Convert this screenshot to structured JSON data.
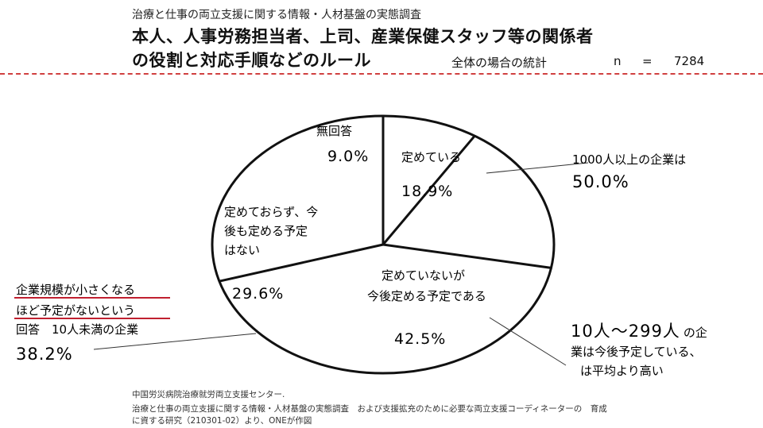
{
  "header": {
    "survey_title": "治療と仕事の両立支援に関する情報・人材基盤の実態調査",
    "headline_line1": "本人、人事労務担当者、上司、産業保健スタッフ等の関係者",
    "headline_line2": "の役割と対応手順などのルール",
    "stats_label": "全体の場合の統計",
    "stats_n_label": "n",
    "stats_eq": "=",
    "stats_n_value": "7284"
  },
  "chart_data": {
    "type": "pie",
    "slices": [
      {
        "label": "定めている",
        "value": 18.9,
        "value_text": "18.9%"
      },
      {
        "label": "定めていないが今後定める予定である",
        "value": 42.5,
        "value_text": "42.5%"
      },
      {
        "label": "定めておらず、今後も定める予定はない",
        "value": 29.6,
        "value_text": "29.6%"
      },
      {
        "label": "無回答",
        "value": 9.0,
        "value_text": "9.0%"
      }
    ],
    "slice_label_lines": {
      "defined": [
        "定めている"
      ],
      "planned": [
        "定めていないが",
        "今後定める予定である"
      ],
      "not_planned": [
        "定めておらず、今",
        "後も定める予定",
        "はない"
      ],
      "no_answer": [
        "無回答"
      ]
    }
  },
  "annotations": {
    "large_company_line": "1000人以上の企業は",
    "large_company_value": "50.0%",
    "small_company_line1": "企業規模が小さくなる",
    "small_company_line2": "ほど予定がないという",
    "small_company_line3": "回答　10人未満の企業",
    "small_company_value": "38.2%",
    "mid_company_line1_big": "10人～299人",
    "mid_company_line1_small": "の企",
    "mid_company_line2": "業は今後予定している、",
    "mid_company_line3": "は平均より高い"
  },
  "source": {
    "line1": "中国労災病院治療就労両立支援センター.",
    "line2": "治療と仕事の両立支援に関する情報・人材基盤の実態調査　および支援拡充のために必要な両立支援コーディネーターの　育成",
    "line3": "に資する研究（210301-02）より、ONEが作図"
  },
  "colors": {
    "ink": "#111111",
    "dash": "#d04040",
    "underline": "#c02030"
  }
}
